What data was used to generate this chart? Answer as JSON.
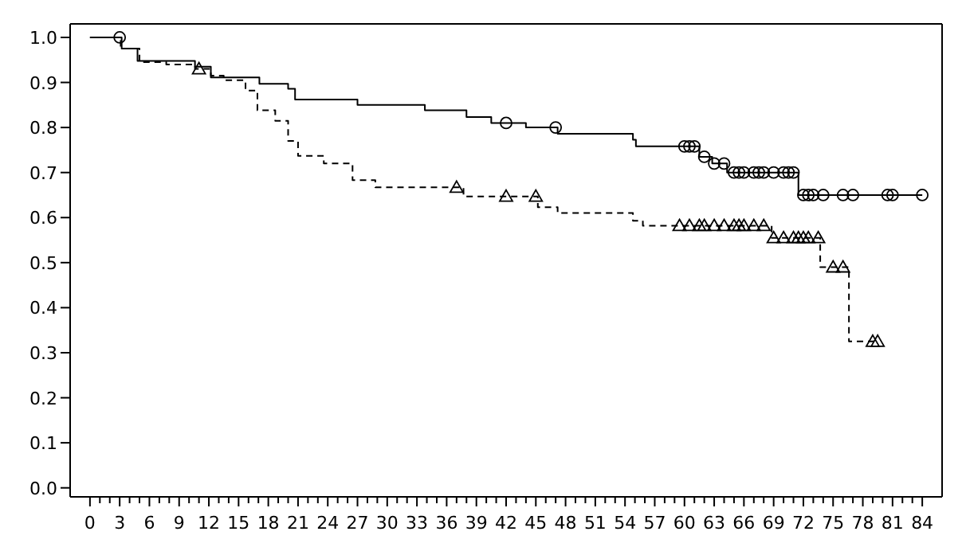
{
  "chart_data": {
    "type": "step",
    "xlim": [
      -2,
      86
    ],
    "ylim": [
      -0.02,
      1.03
    ],
    "xticks": [
      0,
      {
        "value": 1,
        "label": null
      },
      {
        "value": 2,
        "label": null
      },
      3,
      {
        "value": 4,
        "label": null
      },
      {
        "value": 5,
        "label": null
      },
      6,
      {
        "value": 7,
        "label": null
      },
      {
        "value": 8,
        "label": null
      },
      9,
      {
        "value": 10,
        "label": null
      },
      {
        "value": 11,
        "label": null
      },
      12,
      {
        "value": 13,
        "label": null
      },
      {
        "value": 14,
        "label": null
      },
      15,
      {
        "value": 16,
        "label": null
      },
      {
        "value": 17,
        "label": null
      },
      18,
      {
        "value": 19,
        "label": null
      },
      {
        "value": 20,
        "label": null
      },
      21,
      {
        "value": 22,
        "label": null
      },
      {
        "value": 23,
        "label": null
      },
      24,
      {
        "value": 25,
        "label": null
      },
      {
        "value": 26,
        "label": null
      },
      27,
      {
        "value": 28,
        "label": null
      },
      {
        "value": 29,
        "label": null
      },
      30,
      {
        "value": 31,
        "label": null
      },
      {
        "value": 32,
        "label": null
      },
      33,
      {
        "value": 34,
        "label": null
      },
      {
        "value": 35,
        "label": null
      },
      36,
      {
        "value": 37,
        "label": null
      },
      {
        "value": 38,
        "label": null
      },
      39,
      {
        "value": 40,
        "label": null
      },
      {
        "value": 41,
        "label": null
      },
      42,
      {
        "value": 43,
        "label": null
      },
      {
        "value": 44,
        "label": null
      },
      45,
      {
        "value": 46,
        "label": null
      },
      {
        "value": 47,
        "label": null
      },
      48,
      {
        "value": 49,
        "label": null
      },
      {
        "value": 50,
        "label": null
      },
      51,
      {
        "value": 52,
        "label": null
      },
      {
        "value": 53,
        "label": null
      },
      54,
      {
        "value": 55,
        "label": null
      },
      {
        "value": 56,
        "label": null
      },
      57,
      {
        "value": 58,
        "label": null
      },
      {
        "value": 59,
        "label": null
      },
      60,
      {
        "value": 61,
        "label": null
      },
      {
        "value": 62,
        "label": null
      },
      63,
      {
        "value": 64,
        "label": null
      },
      {
        "value": 65,
        "label": null
      },
      66,
      {
        "value": 67,
        "label": null
      },
      {
        "value": 68,
        "label": null
      },
      69,
      {
        "value": 70,
        "label": null
      },
      {
        "value": 71,
        "label": null
      },
      72,
      {
        "value": 73,
        "label": null
      },
      {
        "value": 74,
        "label": null
      },
      75,
      {
        "value": 76,
        "label": null
      },
      {
        "value": 77,
        "label": null
      },
      78,
      {
        "value": 79,
        "label": null
      },
      {
        "value": 80,
        "label": null
      },
      81,
      {
        "value": 82,
        "label": null
      },
      {
        "value": 83,
        "label": null
      },
      84
    ],
    "yticks": [
      {
        "value": 0,
        "label": "0.0"
      },
      {
        "value": 0.1,
        "label": "0.1"
      },
      {
        "value": 0.2,
        "label": "0.2"
      },
      {
        "value": 0.3,
        "label": "0.3"
      },
      {
        "value": 0.4,
        "label": "0.4"
      },
      {
        "value": 0.5,
        "label": "0.5"
      },
      {
        "value": 0.6,
        "label": "0.6"
      },
      {
        "value": 0.7,
        "label": "0.7"
      },
      {
        "value": 0.8,
        "label": "0.8"
      },
      {
        "value": 0.9,
        "label": "0.9"
      },
      {
        "value": 1,
        "label": "1.0"
      }
    ],
    "grid": false,
    "series": [
      {
        "color": "#000000",
        "line_style": "solid",
        "marker": "none",
        "x": [
          0,
          3.2,
          4.8,
          10.6,
          12.2,
          17.1,
          20,
          20.7,
          27,
          33.8,
          38,
          40.5,
          44,
          47.2,
          54.8,
          55.1,
          61.5,
          62.8,
          64.3,
          71.5,
          84
        ],
        "values": [
          1,
          0.975,
          0.948,
          0.935,
          0.911,
          0.897,
          0.886,
          0.862,
          0.85,
          0.838,
          0.823,
          0.81,
          0.8,
          0.786,
          0.773,
          0.758,
          0.735,
          0.72,
          0.7,
          0.65,
          0.65
        ]
      },
      {
        "color": "#000000",
        "line_style": "dashed",
        "marker": "none",
        "x": [
          0,
          3.1,
          5,
          7.7,
          10.6,
          12.2,
          13.5,
          15.7,
          16.9,
          18.7,
          20,
          21,
          23.6,
          26.5,
          28.8,
          37.7,
          45.2,
          47.2,
          54.8,
          55.8,
          68.8,
          73.7,
          76.6,
          79.5
        ],
        "values": [
          1,
          0.975,
          0.945,
          0.94,
          0.93,
          0.915,
          0.905,
          0.882,
          0.838,
          0.815,
          0.77,
          0.737,
          0.72,
          0.683,
          0.667,
          0.647,
          0.623,
          0.61,
          0.593,
          0.582,
          0.555,
          0.49,
          0.325,
          0.325
        ]
      },
      {
        "type": "scatter",
        "color": "#000000",
        "marker": "circle",
        "x": [
          3,
          42,
          47,
          60,
          60.5,
          61,
          62,
          63,
          64,
          65,
          65.5,
          66,
          67,
          67.5,
          68,
          69,
          70,
          70.5,
          71,
          72,
          72.5,
          73,
          74,
          76,
          77,
          80.5,
          81,
          84
        ],
        "values": [
          1,
          0.81,
          0.8,
          0.758,
          0.758,
          0.758,
          0.735,
          0.72,
          0.72,
          0.7,
          0.7,
          0.7,
          0.7,
          0.7,
          0.7,
          0.7,
          0.7,
          0.7,
          0.7,
          0.65,
          0.65,
          0.65,
          0.65,
          0.65,
          0.65,
          0.65,
          0.65,
          0.65
        ]
      },
      {
        "type": "scatter",
        "color": "#000000",
        "marker": "triangle",
        "x": [
          11,
          37,
          42,
          45,
          59.5,
          60.5,
          61.5,
          62,
          63,
          64,
          65,
          65.5,
          66,
          67,
          68,
          69,
          70,
          71,
          71.5,
          72,
          72.5,
          73.5,
          75,
          76,
          79,
          79.5
        ],
        "values": [
          0.93,
          0.667,
          0.647,
          0.647,
          0.582,
          0.582,
          0.582,
          0.582,
          0.582,
          0.582,
          0.582,
          0.582,
          0.582,
          0.582,
          0.582,
          0.555,
          0.555,
          0.555,
          0.555,
          0.555,
          0.555,
          0.555,
          0.49,
          0.49,
          0.325,
          0.325
        ]
      }
    ]
  }
}
